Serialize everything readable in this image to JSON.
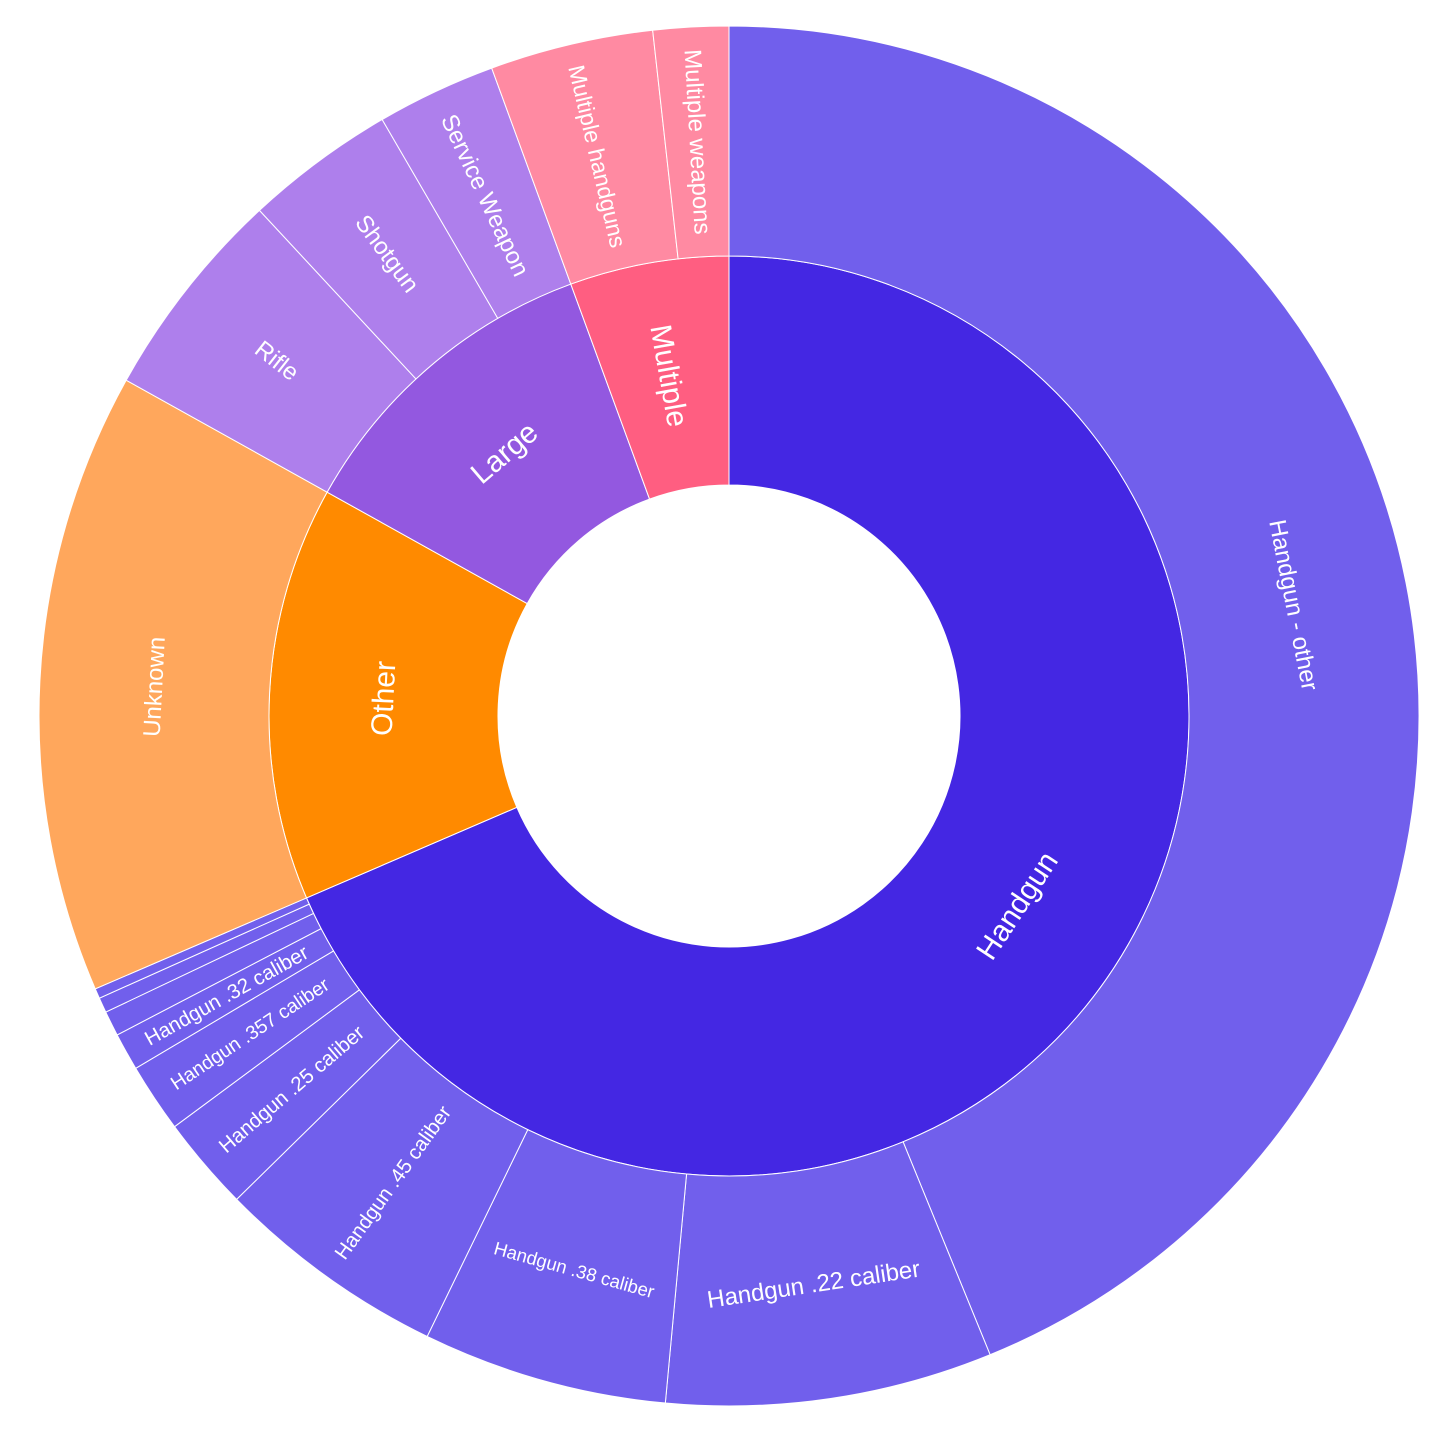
{
  "chart_data": {
    "type": "sunburst",
    "title": "",
    "inner": [
      {
        "name": "Handgun",
        "value": 233.0,
        "color": "#4427e3",
        "label": "Handgun"
      },
      {
        "name": "Other",
        "value": 49.5,
        "color": "#ff8a00",
        "label": "Other"
      },
      {
        "name": "Large",
        "value": 38.5,
        "color": "#9358e0",
        "label": "Large"
      },
      {
        "name": "Multiple",
        "value": 19.0,
        "color": "#ff5e81",
        "label": "Multiple"
      }
    ],
    "outer": [
      {
        "parent": "Handgun",
        "name": "Handgun - other",
        "value": 149.0,
        "color": "#715fec",
        "label": "Handgun - other"
      },
      {
        "parent": "Handgun",
        "name": "Handgun .22 caliber",
        "value": 26.0,
        "color": "#715fec",
        "label": "Handgun .22 caliber"
      },
      {
        "parent": "Handgun",
        "name": "Handgun .38 caliber",
        "value": 19.5,
        "color": "#715fec",
        "label": "Handgun .38 caliber"
      },
      {
        "parent": "Handgun",
        "name": "Handgun .45 caliber",
        "value": 18.5,
        "color": "#715fec",
        "label": "Handgun .45 caliber"
      },
      {
        "parent": "Handgun",
        "name": "Handgun .25 caliber",
        "value": 7.5,
        "color": "#715fec",
        "label": "Handgun .25 caliber"
      },
      {
        "parent": "Handgun",
        "name": "Handgun .357 caliber",
        "value": 5.5,
        "color": "#715fec",
        "label": "Handgun .357 caliber"
      },
      {
        "parent": "Handgun",
        "name": "Handgun .32 caliber",
        "value": 3.0,
        "color": "#715fec",
        "label": "Handgun .32 caliber"
      },
      {
        "parent": "Handgun",
        "name": "",
        "value": 2.0,
        "color": "#715fec",
        "label": ""
      },
      {
        "parent": "Handgun",
        "name": "",
        "value": 1.2,
        "color": "#715fec",
        "label": ""
      },
      {
        "parent": "Handgun",
        "name": "",
        "value": 0.8,
        "color": "#715fec",
        "label": ""
      },
      {
        "parent": "Other",
        "name": "Unknown",
        "value": 49.5,
        "color": "#ffa75c",
        "label": "Unknown"
      },
      {
        "parent": "Large",
        "name": "Rifle",
        "value": 17.0,
        "color": "#ae7fec",
        "label": "Rifle"
      },
      {
        "parent": "Large",
        "name": "Shotgun",
        "value": 12.0,
        "color": "#ae7fec",
        "label": "Shotgun"
      },
      {
        "parent": "Large",
        "name": "Service Weapon",
        "value": 9.5,
        "color": "#ae7fec",
        "label": "Service Weapon"
      },
      {
        "parent": "Multiple",
        "name": "Multiple handguns",
        "value": 13.0,
        "color": "#ff8aa2",
        "label": "Multiple handguns"
      },
      {
        "parent": "Multiple",
        "name": "Multiple weapons",
        "value": 6.0,
        "color": "#ff8aa2",
        "label": "Multiple weapons"
      }
    ]
  }
}
